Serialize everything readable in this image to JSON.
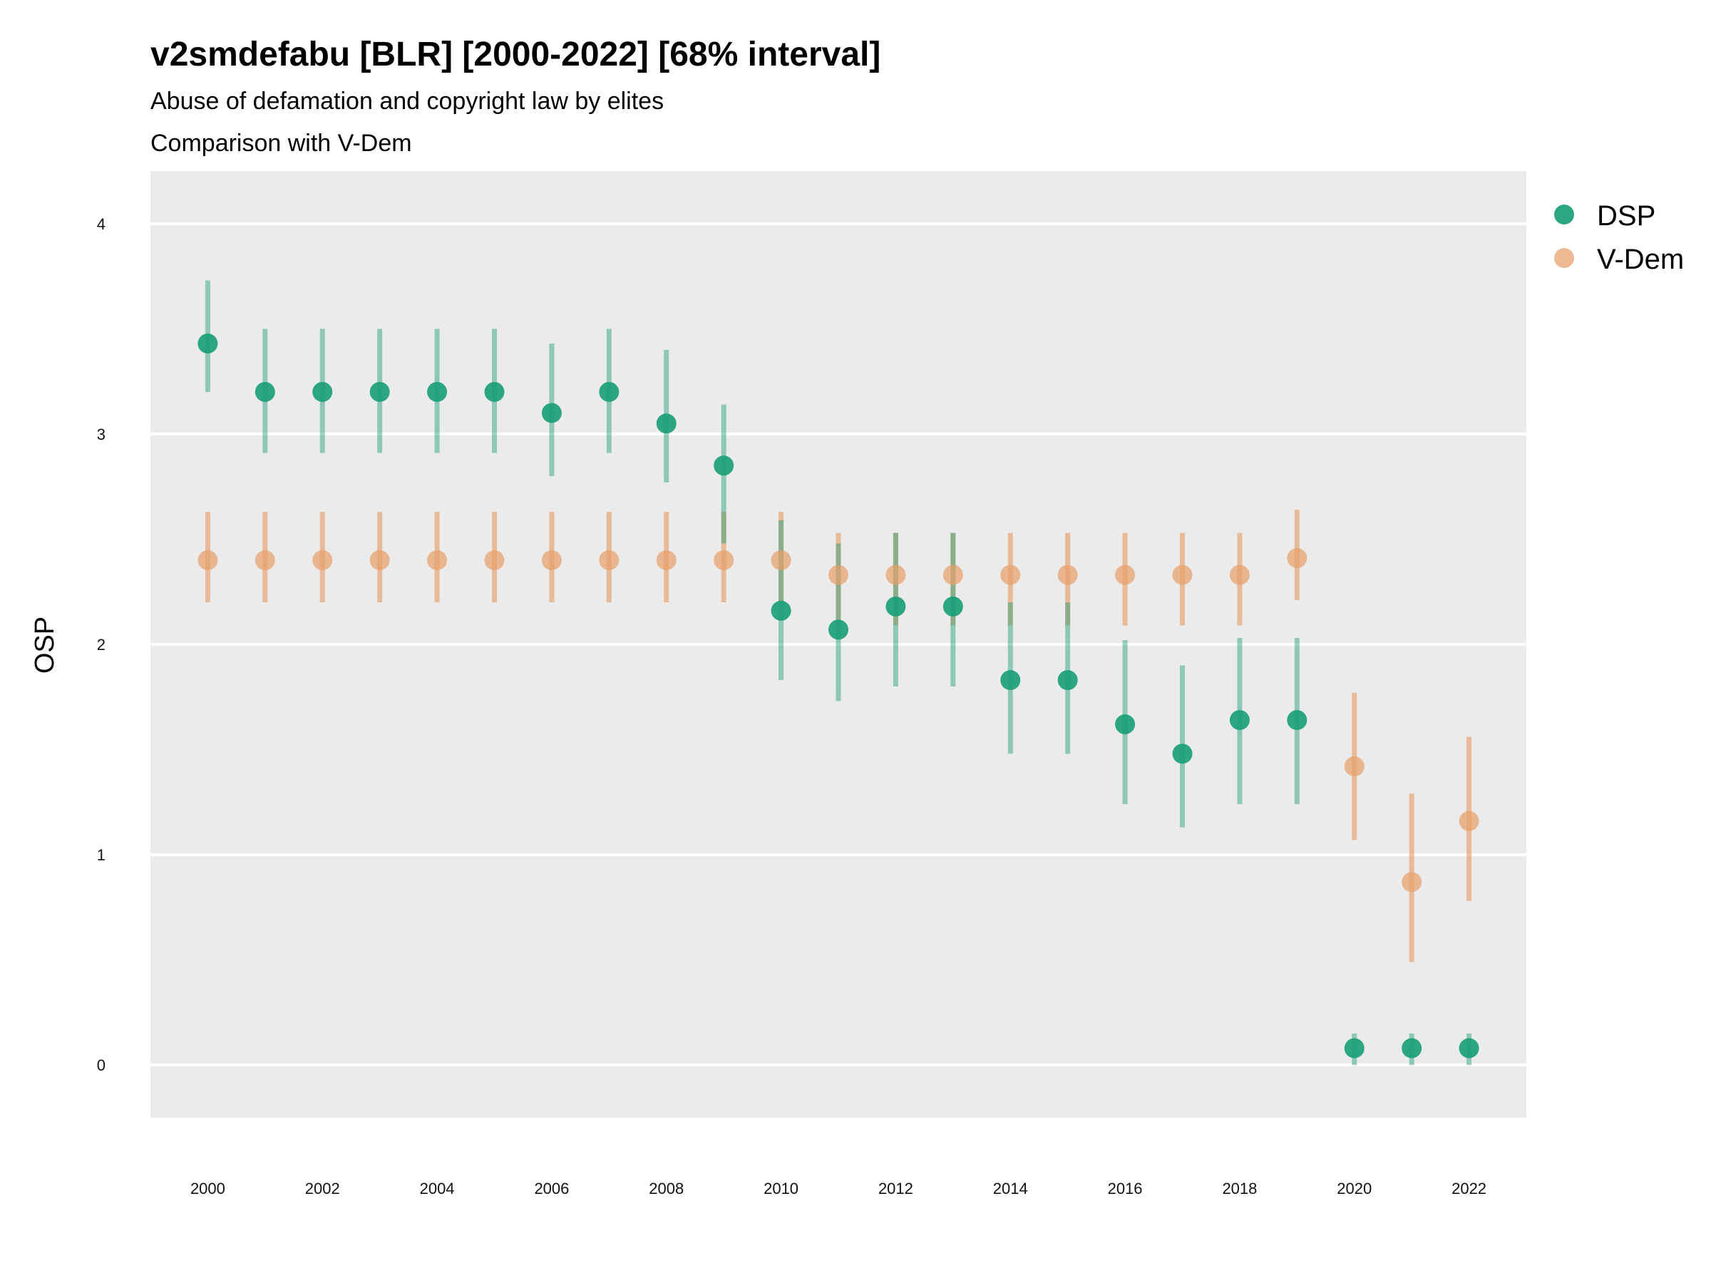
{
  "chart_data": {
    "type": "scatter",
    "title": "v2smdefabu [BLR] [2000-2022] [68% interval]",
    "subtitle_lines": [
      "Abuse of defamation and copyright law by elites",
      "Comparison with V-Dem"
    ],
    "ylabel": "OSP",
    "xlabel": "",
    "ylim": [
      -0.25,
      4.25
    ],
    "xlim": [
      1999,
      2023
    ],
    "yticks": [
      0,
      1,
      2,
      3,
      4
    ],
    "xticks": [
      2000,
      2002,
      2004,
      2006,
      2008,
      2010,
      2012,
      2014,
      2016,
      2018,
      2020,
      2022
    ],
    "grid": true,
    "legend_position": "right",
    "series": [
      {
        "name": "DSP",
        "color": "#1b9e77",
        "x": [
          2000,
          2001,
          2002,
          2003,
          2004,
          2005,
          2006,
          2007,
          2008,
          2009,
          2010,
          2011,
          2012,
          2013,
          2014,
          2015,
          2016,
          2017,
          2018,
          2019,
          2020,
          2021,
          2022
        ],
        "y": [
          3.43,
          3.2,
          3.2,
          3.2,
          3.2,
          3.2,
          3.1,
          3.2,
          3.05,
          2.85,
          2.16,
          2.07,
          2.18,
          2.18,
          1.83,
          1.83,
          1.62,
          1.48,
          1.64,
          1.64,
          0.08,
          0.08,
          0.08
        ],
        "low": [
          3.2,
          2.91,
          2.91,
          2.91,
          2.91,
          2.91,
          2.8,
          2.91,
          2.77,
          2.48,
          1.83,
          1.73,
          1.8,
          1.8,
          1.48,
          1.48,
          1.24,
          1.13,
          1.24,
          1.24,
          0.0,
          0.0,
          0.0
        ],
        "high": [
          3.73,
          3.5,
          3.5,
          3.5,
          3.5,
          3.5,
          3.43,
          3.5,
          3.4,
          3.14,
          2.59,
          2.48,
          2.53,
          2.53,
          2.2,
          2.2,
          2.02,
          1.9,
          2.03,
          2.03,
          0.15,
          0.15,
          0.15
        ]
      },
      {
        "name": "V-Dem",
        "color": "#e6a06b",
        "x": [
          2000,
          2001,
          2002,
          2003,
          2004,
          2005,
          2006,
          2007,
          2008,
          2009,
          2010,
          2011,
          2012,
          2013,
          2014,
          2015,
          2016,
          2017,
          2018,
          2019,
          2020,
          2021,
          2022
        ],
        "y": [
          2.4,
          2.4,
          2.4,
          2.4,
          2.4,
          2.4,
          2.4,
          2.4,
          2.4,
          2.4,
          2.4,
          2.33,
          2.33,
          2.33,
          2.33,
          2.33,
          2.33,
          2.33,
          2.33,
          2.41,
          1.42,
          0.87,
          1.16
        ],
        "low": [
          2.2,
          2.2,
          2.2,
          2.2,
          2.2,
          2.2,
          2.2,
          2.2,
          2.2,
          2.2,
          2.2,
          2.09,
          2.09,
          2.09,
          2.09,
          2.09,
          2.09,
          2.09,
          2.09,
          2.21,
          1.07,
          0.49,
          0.78
        ],
        "high": [
          2.63,
          2.63,
          2.63,
          2.63,
          2.63,
          2.63,
          2.63,
          2.63,
          2.63,
          2.63,
          2.63,
          2.53,
          2.53,
          2.53,
          2.53,
          2.53,
          2.53,
          2.53,
          2.53,
          2.64,
          1.77,
          1.29,
          1.56
        ]
      }
    ]
  }
}
